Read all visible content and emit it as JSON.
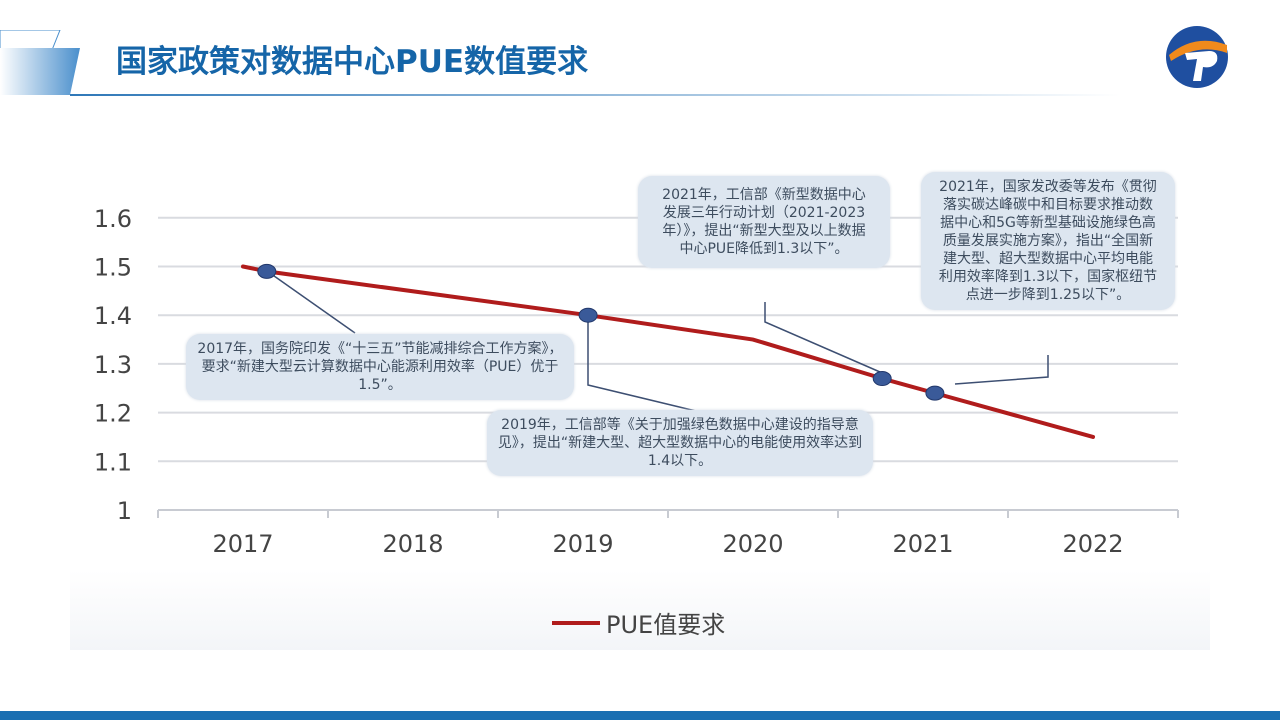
{
  "header": {
    "title": "国家政策对数据中心PUE数值要求"
  },
  "colors": {
    "title": "#1565a8",
    "line": "#b01c1c",
    "marker": "#3a5a99",
    "footer": "#1a6fb2"
  },
  "chart_data": {
    "type": "line",
    "categories": [
      "2017",
      "2018",
      "2019",
      "2020",
      "2021",
      "2022"
    ],
    "y_ticks": [
      "1",
      "1.1",
      "1.2",
      "1.3",
      "1.4",
      "1.5",
      "1.6"
    ],
    "ylim": [
      1,
      1.6
    ],
    "grid": true,
    "legend_position": "bottom",
    "series": [
      {
        "name": "PUE值要求",
        "x": [
          2017,
          2017.14,
          2019.03,
          2020,
          2020.76,
          2021.07,
          2022
        ],
        "values": [
          1.5,
          1.49,
          1.4,
          1.35,
          1.27,
          1.24,
          1.15
        ]
      }
    ],
    "markers": [
      {
        "x": 2017.14,
        "y": 1.49
      },
      {
        "x": 2019.03,
        "y": 1.4
      },
      {
        "x": 2020.76,
        "y": 1.27
      },
      {
        "x": 2021.07,
        "y": 1.24
      }
    ],
    "annotations": [
      "2017年，国务院印发《“十三五”节能减排综合工作方案》，要求“新建大型云计算数据中心能源利用效率（PUE）优于1.5”。",
      "2019年，工信部等《关于加强绿色数据中心建设的指导意见》，提出“新建大型、超大型数据中心的电能使用效率达到1.4以下。",
      "2021年，工信部《新型数据中心发展三年行动计划（2021-2023年）》，提出“新型大型及以上数据中心PUE降低到1.3以下”。",
      "2021年，国家发改委等发布《贯彻落实碳达峰碳中和目标要求推动数据中心和5G等新型基础设施绿色高质量发展实施方案》，指出“全国新建大型、超大型数据中心平均电能利用效率降到1.3以下，国家枢纽节点进一步降到1.25以下”。"
    ]
  }
}
